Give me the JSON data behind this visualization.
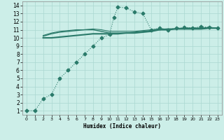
{
  "xlabel": "Humidex (Indice chaleur)",
  "xlim": [
    -0.5,
    23.5
  ],
  "ylim": [
    0.5,
    14.5
  ],
  "xticks": [
    0,
    1,
    2,
    3,
    4,
    5,
    6,
    7,
    8,
    9,
    10,
    11,
    12,
    13,
    14,
    15,
    16,
    17,
    18,
    19,
    20,
    21,
    22,
    23
  ],
  "yticks": [
    1,
    2,
    3,
    4,
    5,
    6,
    7,
    8,
    9,
    10,
    11,
    12,
    13,
    14
  ],
  "bg_color": "#cceee8",
  "grid_color": "#aad8d0",
  "line_color": "#2a7a6a",
  "series": [
    {
      "x": [
        0,
        1,
        2,
        3,
        4,
        5,
        6,
        7,
        8,
        9,
        10,
        10.5,
        11,
        12,
        13,
        14,
        15,
        16,
        17,
        18,
        19,
        20,
        21,
        22,
        23
      ],
      "y": [
        1.0,
        1.0,
        2.5,
        3.0,
        5.0,
        6.0,
        7.0,
        8.0,
        9.0,
        10.0,
        10.4,
        12.5,
        13.8,
        13.7,
        13.2,
        13.0,
        11.0,
        11.2,
        11.0,
        11.2,
        11.3,
        11.2,
        11.4,
        11.3,
        11.2
      ],
      "marker": "D",
      "marker_size": 2.5,
      "linewidth": 0.8,
      "linestyle": ":"
    },
    {
      "x": [
        2,
        3,
        4,
        5,
        6,
        7,
        8,
        9,
        10,
        11,
        12,
        13,
        14,
        15,
        16,
        17,
        18,
        19,
        20,
        21,
        22,
        23
      ],
      "y": [
        10.0,
        10.0,
        10.1,
        10.2,
        10.3,
        10.4,
        10.5,
        10.5,
        10.5,
        10.5,
        10.6,
        10.6,
        10.7,
        10.8,
        11.0,
        11.0,
        11.1,
        11.1,
        11.1,
        11.1,
        11.2,
        11.2
      ],
      "marker": null,
      "marker_size": 0,
      "linewidth": 1.5,
      "linestyle": "-"
    },
    {
      "x": [
        2,
        3,
        4,
        5,
        6,
        7,
        8,
        9,
        10,
        11,
        12,
        13,
        14,
        15,
        16,
        17,
        18,
        19,
        20,
        21,
        22,
        23
      ],
      "y": [
        10.2,
        10.5,
        10.7,
        10.8,
        10.9,
        11.0,
        11.0,
        10.8,
        10.6,
        10.6,
        10.6,
        10.7,
        10.8,
        10.9,
        11.0,
        11.1,
        11.1,
        11.2,
        11.2,
        11.2,
        11.2,
        11.2
      ],
      "marker": null,
      "marker_size": 0,
      "linewidth": 1.0,
      "linestyle": "-"
    },
    {
      "x": [
        2,
        3,
        4,
        5,
        6,
        7,
        8,
        9,
        10,
        11,
        12,
        13,
        14,
        15,
        16,
        17,
        18,
        19,
        20,
        21,
        22,
        23
      ],
      "y": [
        10.3,
        10.6,
        10.8,
        10.9,
        11.0,
        11.0,
        11.1,
        11.0,
        10.8,
        10.8,
        10.8,
        10.8,
        10.9,
        11.0,
        11.1,
        11.1,
        11.1,
        11.2,
        11.2,
        11.2,
        11.3,
        11.2
      ],
      "marker": null,
      "marker_size": 0,
      "linewidth": 0.8,
      "linestyle": "-"
    }
  ]
}
